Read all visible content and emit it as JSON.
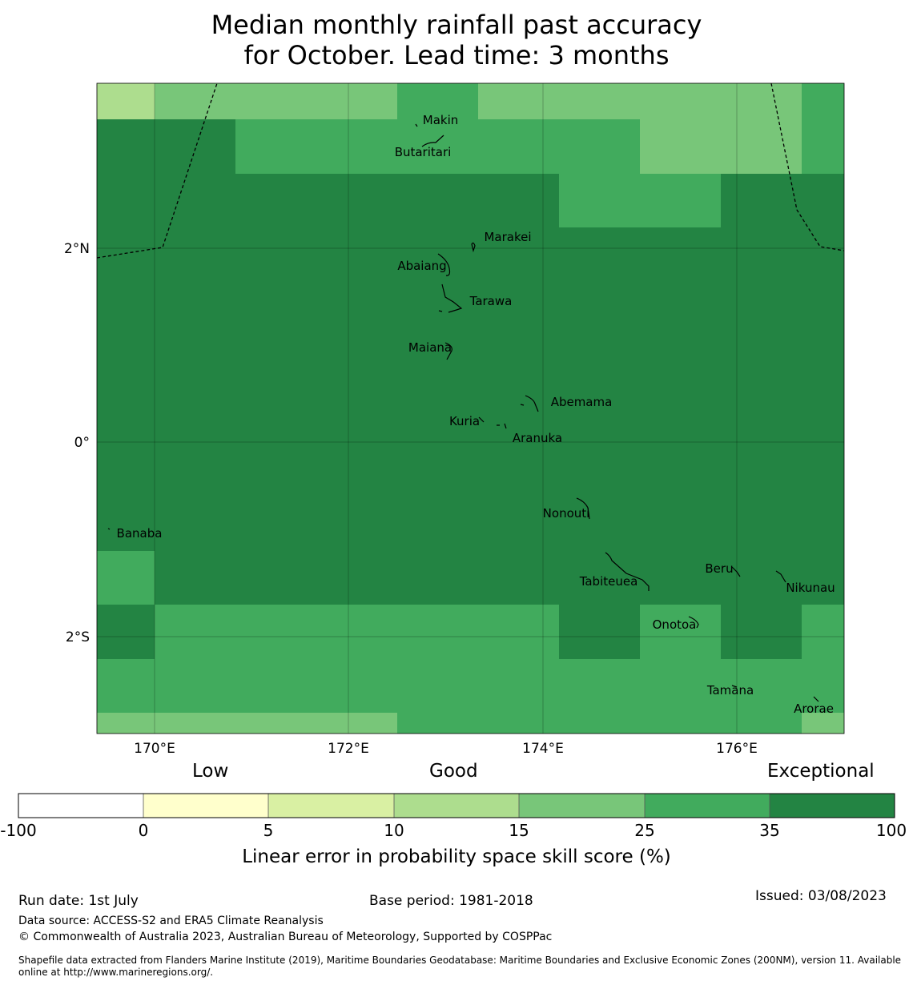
{
  "title": {
    "line1": "Median monthly rainfall past accuracy",
    "line2": "for October. Lead time: 3 months"
  },
  "map": {
    "lon_ticks": [
      "170°E",
      "172°E",
      "174°E",
      "176°E"
    ],
    "lat_ticks": [
      "2°N",
      "0°",
      "2°S"
    ],
    "islands": [
      {
        "name": "Makin"
      },
      {
        "name": "Butaritari"
      },
      {
        "name": "Marakei"
      },
      {
        "name": "Abaiang"
      },
      {
        "name": "Tarawa"
      },
      {
        "name": "Maiana"
      },
      {
        "name": "Abemama"
      },
      {
        "name": "Kuria"
      },
      {
        "name": "Aranuka"
      },
      {
        "name": "Banaba"
      },
      {
        "name": "Nonouti"
      },
      {
        "name": "Beru"
      },
      {
        "name": "Tabiteuea"
      },
      {
        "name": "Nikunau"
      },
      {
        "name": "Onotoa"
      },
      {
        "name": "Tamana"
      },
      {
        "name": "Arorae"
      }
    ]
  },
  "colorbar": {
    "categories": [
      "Low",
      "Good",
      "Exceptional"
    ],
    "ticks": [
      "-100",
      "0",
      "5",
      "10",
      "15",
      "25",
      "35",
      "100"
    ],
    "colors": [
      "#ffffff",
      "#ffffcc",
      "#d9f0a3",
      "#addd8e",
      "#78c679",
      "#41ab5d",
      "#238443"
    ],
    "label": "Linear error in probability space skill score (%)"
  },
  "footer": {
    "run_date": "Run date: 1st July",
    "base_period": "Base period: 1981-2018",
    "issued": "Issued: 03/08/2023",
    "data_source": "Data source: ACCESS-S2 and ERA5 Climate Reanalysis",
    "copyright": "© Commonwealth of Australia 2023, Australian Bureau of Meteorology, Supported by COSPPac",
    "shapefile_line1": "Shapefile data extracted from Flanders Marine Institute (2019), Maritime Boundaries Geodatabase: Maritime Boundaries and Exclusive Economic Zones (200NM), version 11. Available",
    "shapefile_line2": "online at http://www.marineregions.org/."
  }
}
